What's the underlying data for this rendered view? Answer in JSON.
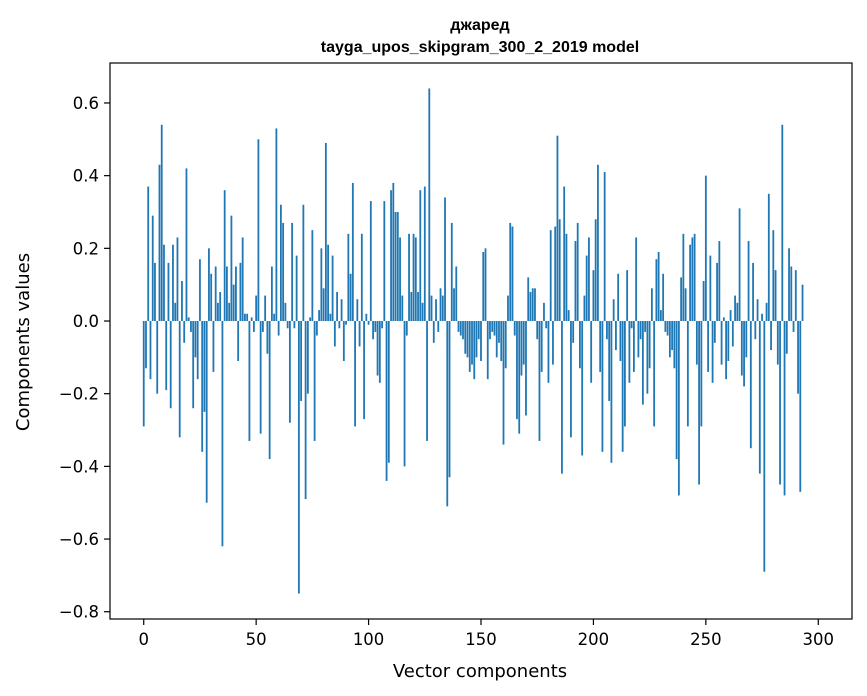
{
  "chart_data": {
    "type": "bar",
    "title": "джаред",
    "subtitle": "tayga_upos_skipgram_300_2_2019 model",
    "xlabel": "Vector components",
    "ylabel": "Components values",
    "xlim": [
      -15,
      315
    ],
    "ylim": [
      -0.82,
      0.71
    ],
    "x_ticks": [
      0,
      50,
      100,
      150,
      200,
      250,
      300
    ],
    "x_tick_labels": [
      "0",
      "50",
      "100",
      "150",
      "200",
      "250",
      "300"
    ],
    "y_ticks": [
      -0.8,
      -0.6,
      -0.4,
      -0.2,
      0.0,
      0.2,
      0.4,
      0.6
    ],
    "y_tick_labels": [
      "−0.8",
      "−0.6",
      "−0.4",
      "−0.2",
      "0.0",
      "0.2",
      "0.4",
      "0.6"
    ],
    "bar_color": "#1f77b4",
    "grid": false,
    "values": [
      -0.29,
      -0.13,
      0.37,
      -0.16,
      0.29,
      0.16,
      -0.2,
      0.43,
      0.54,
      0.21,
      -0.19,
      0.16,
      -0.24,
      0.21,
      0.05,
      0.23,
      -0.32,
      0.11,
      -0.06,
      0.42,
      0.01,
      -0.03,
      -0.24,
      -0.1,
      -0.16,
      0.17,
      -0.36,
      -0.25,
      -0.5,
      0.2,
      0.13,
      -0.14,
      0.15,
      0.05,
      0.08,
      -0.62,
      0.36,
      0.15,
      0.05,
      0.29,
      0.1,
      0.15,
      -0.11,
      0.16,
      0.23,
      0.02,
      0.02,
      -0.33,
      0.01,
      -0.03,
      0.07,
      0.5,
      -0.31,
      -0.03,
      0.07,
      -0.09,
      -0.38,
      0.15,
      0.02,
      0.53,
      -0.04,
      0.32,
      0.27,
      0.05,
      -0.02,
      -0.28,
      0.27,
      -0.02,
      0.18,
      -0.75,
      -0.22,
      0.32,
      -0.49,
      -0.2,
      0.01,
      0.25,
      -0.33,
      -0.04,
      0.03,
      0.2,
      0.09,
      0.49,
      0.21,
      0.02,
      0.18,
      -0.07,
      0.08,
      -0.02,
      0.06,
      -0.11,
      -0.01,
      0.24,
      0.13,
      0.38,
      -0.29,
      0.06,
      -0.07,
      0.24,
      -0.27,
      0.02,
      -0.01,
      0.33,
      -0.05,
      -0.03,
      -0.15,
      -0.17,
      -0.02,
      0.33,
      -0.44,
      -0.39,
      0.36,
      0.38,
      0.3,
      0.3,
      0.23,
      0.07,
      -0.4,
      -0.04,
      0.24,
      0.08,
      0.24,
      0.23,
      0.08,
      0.36,
      0.05,
      0.37,
      -0.33,
      0.64,
      0.07,
      -0.06,
      0.06,
      -0.03,
      0.09,
      0.07,
      0.34,
      -0.51,
      -0.43,
      0.27,
      0.09,
      0.15,
      -0.03,
      -0.04,
      -0.05,
      -0.09,
      -0.1,
      -0.14,
      -0.12,
      -0.16,
      -0.1,
      -0.05,
      -0.11,
      0.19,
      0.2,
      -0.16,
      -0.05,
      -0.03,
      -0.04,
      -0.1,
      -0.06,
      -0.11,
      -0.34,
      -0.13,
      0.07,
      0.27,
      0.26,
      -0.04,
      -0.27,
      -0.31,
      -0.15,
      -0.12,
      -0.26,
      0.12,
      0.08,
      0.09,
      0.09,
      -0.05,
      -0.33,
      -0.14,
      0.05,
      -0.02,
      -0.17,
      0.25,
      -0.12,
      0.26,
      0.51,
      0.28,
      -0.42,
      0.37,
      0.24,
      0.03,
      -0.32,
      -0.06,
      0.22,
      0.27,
      -0.13,
      -0.37,
      0.07,
      0.18,
      0.23,
      -0.17,
      0.14,
      0.28,
      0.43,
      -0.14,
      -0.36,
      0.41,
      -0.05,
      -0.22,
      -0.39,
      0.06,
      -0.08,
      0.13,
      -0.11,
      -0.36,
      -0.29,
      0.14,
      -0.17,
      -0.02,
      -0.14,
      0.23,
      -0.1,
      -0.05,
      -0.23,
      -0.03,
      -0.2,
      -0.13,
      0.09,
      -0.29,
      0.17,
      0.19,
      0.03,
      0.13,
      -0.03,
      -0.04,
      -0.1,
      -0.08,
      -0.13,
      -0.38,
      -0.48,
      0.12,
      0.24,
      0.09,
      -0.29,
      0.21,
      0.23,
      0.24,
      -0.12,
      -0.45,
      -0.29,
      0.11,
      0.4,
      -0.14,
      0.18,
      -0.17,
      -0.06,
      0.16,
      0.22,
      -0.12,
      0.01,
      -0.16,
      -0.11,
      0.03,
      -0.07,
      0.07,
      0.05,
      0.31,
      -0.15,
      -0.18,
      -0.1,
      0.22,
      -0.35,
      0.16,
      -0.05,
      0.06,
      -0.42,
      0.02,
      -0.69,
      0.05,
      0.35,
      -0.08,
      0.25,
      0.14,
      -0.12,
      -0.45,
      0.54,
      -0.48,
      -0.09,
      0.2,
      0.15,
      -0.03,
      0.14,
      -0.2,
      -0.47,
      0.1
    ]
  }
}
